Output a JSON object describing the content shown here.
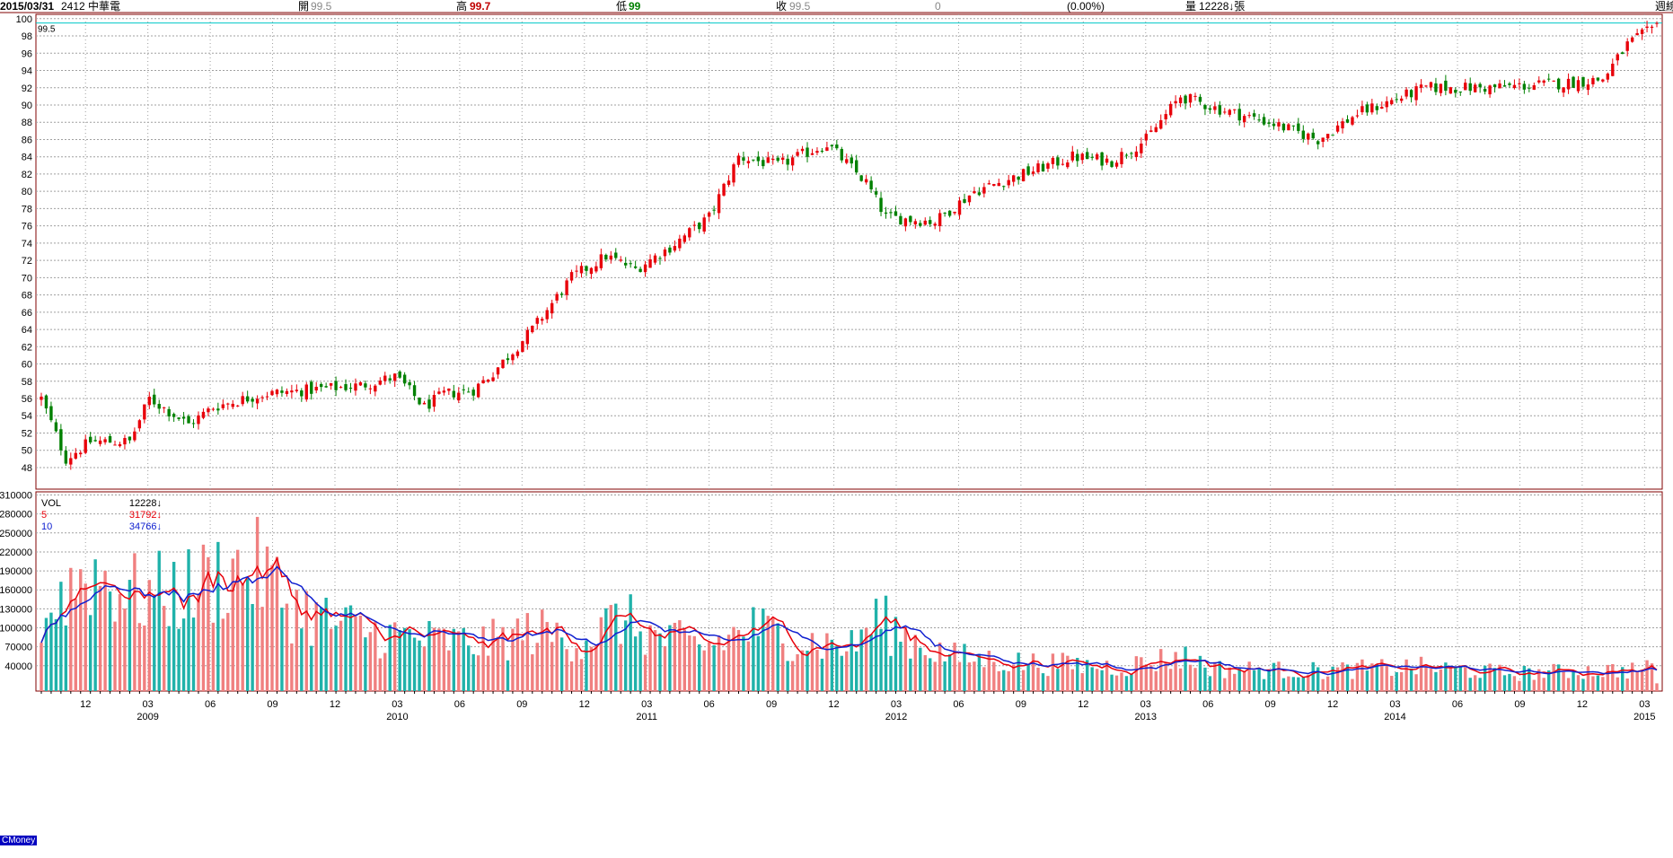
{
  "header": {
    "date": "2015/03/31",
    "code_name": "2412 中華電",
    "open_label": "開",
    "open_value": "99.5",
    "high_label": "高",
    "high_value": "99.7",
    "low_label": "低",
    "low_value": "99",
    "close_label": "收",
    "close_value": "99.5",
    "change": "0",
    "change_pct": "(0.00%)",
    "volume_label": "量",
    "volume_value": "12228↓張",
    "period": "週線"
  },
  "price_label": "99.5",
  "volume_legend": [
    {
      "name": "VOL",
      "value": "12228↓"
    },
    {
      "name": "5",
      "value": "31792↓"
    },
    {
      "name": "10",
      "value": "34766↓"
    }
  ],
  "brand": "CMoney",
  "colors": {
    "up": "#e8000a",
    "down": "#008000",
    "vol_up": "#f08080",
    "vol_down": "#20b2aa",
    "ma5": "#e8000a",
    "ma10": "#1020d0",
    "grid": "#a0a0a0",
    "frame": "#800000",
    "ref": "#00c8c8"
  },
  "chart_data": {
    "type": "candlestick+volume",
    "price_axis": {
      "ticks": [
        48,
        50,
        52,
        54,
        56,
        58,
        60,
        62,
        64,
        66,
        68,
        70,
        72,
        74,
        76,
        78,
        80,
        82,
        84,
        86,
        88,
        90,
        92,
        94,
        96,
        98,
        100
      ],
      "range": [
        45.5,
        100.5
      ]
    },
    "volume_axis": {
      "ticks": [
        40000,
        70000,
        100000,
        130000,
        160000,
        190000,
        220000,
        250000,
        280000,
        310000
      ],
      "range": [
        0,
        315000
      ]
    },
    "x_month_ticks": [
      "12",
      "03",
      "06",
      "09",
      "12",
      "03",
      "06",
      "09",
      "12",
      "03",
      "06",
      "09",
      "12",
      "03",
      "06",
      "09",
      "12",
      "03",
      "06",
      "09",
      "12",
      "03",
      "06",
      "09",
      "12",
      "03"
    ],
    "x_year_labels": [
      "2009",
      "2010",
      "2011",
      "2012",
      "2013",
      "2014",
      "2015"
    ],
    "weeks": 330,
    "price_path": [
      [
        0,
        56
      ],
      [
        5,
        49
      ],
      [
        10,
        51
      ],
      [
        18,
        51
      ],
      [
        22,
        56
      ],
      [
        30,
        53
      ],
      [
        35,
        55
      ],
      [
        45,
        56.5
      ],
      [
        65,
        57.5
      ],
      [
        72,
        58.5
      ],
      [
        74,
        57.5
      ],
      [
        78,
        55
      ],
      [
        82,
        56.5
      ],
      [
        88,
        57
      ],
      [
        92,
        59
      ],
      [
        100,
        64
      ],
      [
        108,
        70
      ],
      [
        115,
        72.5
      ],
      [
        121,
        71
      ],
      [
        128,
        73.5
      ],
      [
        136,
        77
      ],
      [
        142,
        84
      ],
      [
        150,
        83
      ],
      [
        160,
        85.5
      ],
      [
        168,
        81
      ],
      [
        172,
        77
      ],
      [
        182,
        76.5
      ],
      [
        190,
        80
      ],
      [
        200,
        82
      ],
      [
        210,
        84
      ],
      [
        218,
        83.5
      ],
      [
        225,
        86
      ],
      [
        232,
        91
      ],
      [
        240,
        89.5
      ],
      [
        250,
        88
      ],
      [
        260,
        86
      ],
      [
        268,
        89
      ],
      [
        282,
        92
      ],
      [
        295,
        92
      ],
      [
        310,
        92.5
      ],
      [
        318,
        93
      ],
      [
        323,
        97
      ],
      [
        330,
        99.5
      ]
    ],
    "volume_anchors": [
      [
        0,
        110000
      ],
      [
        5,
        160000
      ],
      [
        10,
        190000
      ],
      [
        20,
        150000
      ],
      [
        30,
        160000
      ],
      [
        38,
        190000
      ],
      [
        45,
        190000
      ],
      [
        50,
        140000
      ],
      [
        60,
        105000
      ],
      [
        70,
        90000
      ],
      [
        80,
        80000
      ],
      [
        90,
        75000
      ],
      [
        100,
        95000
      ],
      [
        110,
        80000
      ],
      [
        118,
        115000
      ],
      [
        125,
        85000
      ],
      [
        135,
        70000
      ],
      [
        145,
        100000
      ],
      [
        155,
        80000
      ],
      [
        165,
        70000
      ],
      [
        170,
        115000
      ],
      [
        175,
        90000
      ],
      [
        185,
        55000
      ],
      [
        200,
        45000
      ],
      [
        220,
        38000
      ],
      [
        232,
        55000
      ],
      [
        240,
        35000
      ],
      [
        260,
        32000
      ],
      [
        280,
        38000
      ],
      [
        300,
        28000
      ],
      [
        315,
        32000
      ],
      [
        330,
        35000
      ]
    ],
    "last_bar": {
      "open": 99.5,
      "high": 99.7,
      "low": 99,
      "close": 99.5,
      "volume": 12228
    },
    "ma5_last": 31792,
    "ma10_last": 34766
  }
}
